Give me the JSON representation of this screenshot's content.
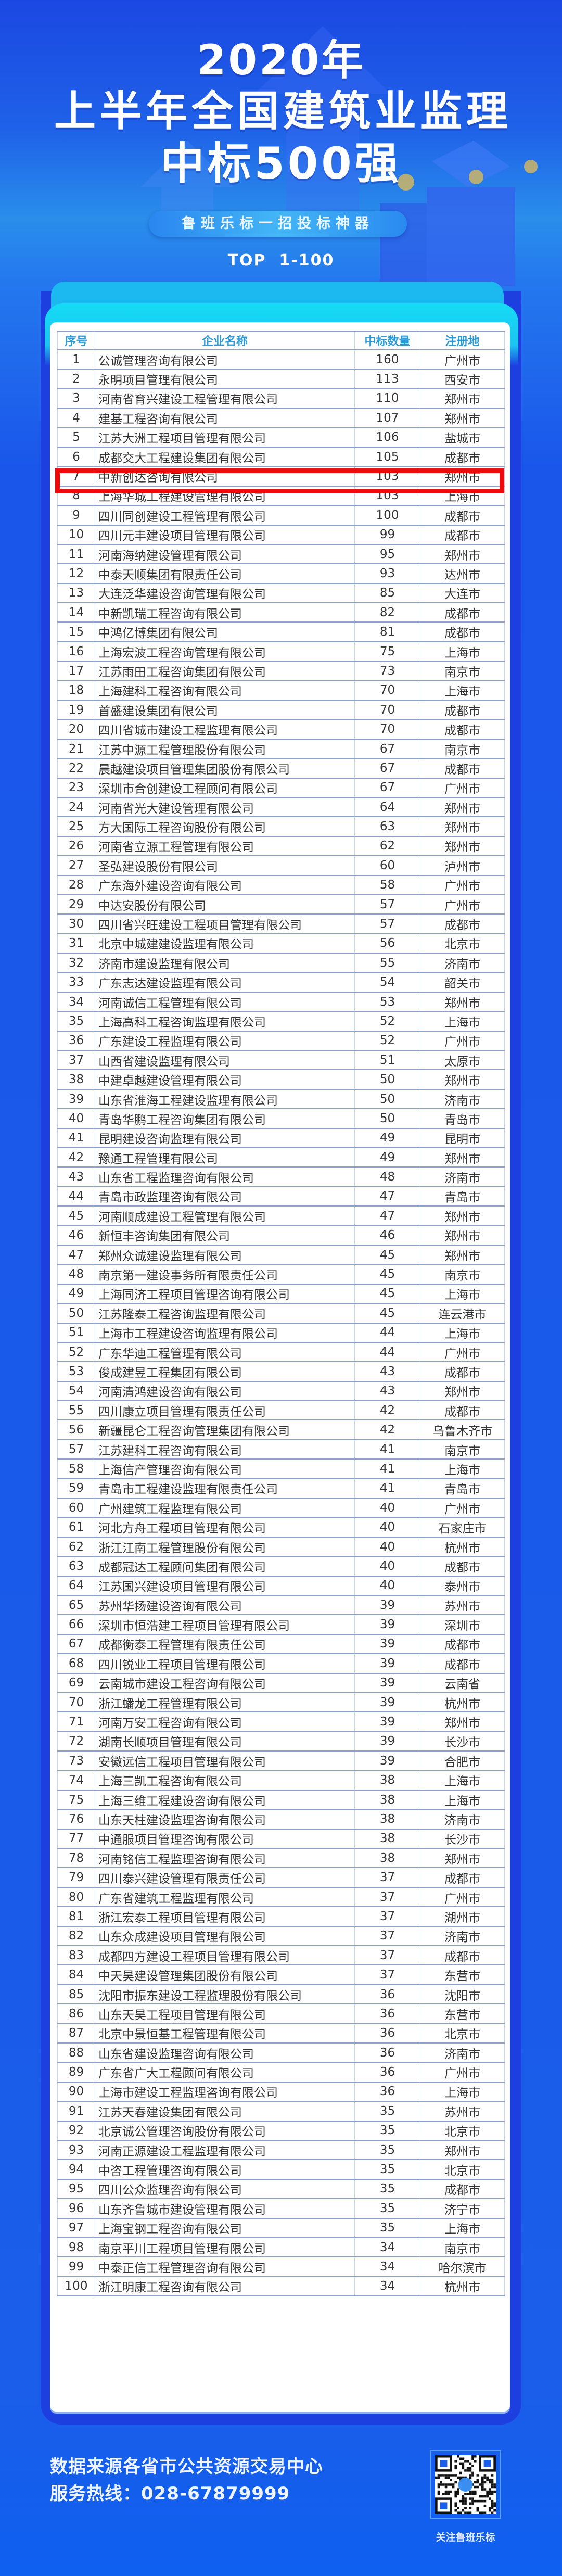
{
  "header": {
    "title_line1": "2020年",
    "title_line2": "上半年全国建筑业监理",
    "title_line3": "中标500强",
    "slogan": "鲁班乐标一招投标神器",
    "range": "TOP  1-100"
  },
  "colors": {
    "accent_cyan": "#15dcf4",
    "header_text": "#2a9ad8",
    "highlight": "#ee0a0a",
    "background_blue": "#1a5ee9"
  },
  "table": {
    "columns": [
      "序号",
      "企业名称",
      "中标数量",
      "注册地"
    ],
    "highlighted_rank": 7,
    "rows": [
      [
        "1",
        "公诚管理咨询有限公司",
        "160",
        "广州市"
      ],
      [
        "2",
        "永明项目管理有限公司",
        "113",
        "西安市"
      ],
      [
        "3",
        "河南省育兴建设工程管理有限公司",
        "110",
        "郑州市"
      ],
      [
        "4",
        "建基工程咨询有限公司",
        "107",
        "郑州市"
      ],
      [
        "5",
        "江苏大洲工程项目管理有限公司",
        "106",
        "盐城市"
      ],
      [
        "6",
        "成都交大工程建设集团有限公司",
        "105",
        "成都市"
      ],
      [
        "7",
        "中新创达咨询有限公司",
        "103",
        "郑州市"
      ],
      [
        "8",
        "上海华城工程建设管理有限公司",
        "103",
        "上海市"
      ],
      [
        "9",
        "四川同创建设工程管理有限公司",
        "100",
        "成都市"
      ],
      [
        "10",
        "四川元丰建设项目管理有限公司",
        "99",
        "成都市"
      ],
      [
        "11",
        "河南海纳建设管理有限公司",
        "95",
        "郑州市"
      ],
      [
        "12",
        "中泰天顺集团有限责任公司",
        "93",
        "达州市"
      ],
      [
        "13",
        "大连泛华建设咨询管理有限公司",
        "85",
        "大连市"
      ],
      [
        "14",
        "中新凯瑞工程咨询有限公司",
        "82",
        "成都市"
      ],
      [
        "15",
        "中鸿亿博集团有限公司",
        "81",
        "成都市"
      ],
      [
        "16",
        "上海宏波工程咨询管理有限公司",
        "75",
        "上海市"
      ],
      [
        "17",
        "江苏雨田工程咨询集团有限公司",
        "73",
        "南京市"
      ],
      [
        "18",
        "上海建科工程咨询有限公司",
        "70",
        "上海市"
      ],
      [
        "19",
        "首盛建设集团有限公司",
        "70",
        "成都市"
      ],
      [
        "20",
        "四川省城市建设工程监理有限公司",
        "70",
        "成都市"
      ],
      [
        "21",
        "江苏中源工程管理股份有限公司",
        "67",
        "南京市"
      ],
      [
        "22",
        "晨越建设项目管理集团股份有限公司",
        "67",
        "成都市"
      ],
      [
        "23",
        "深圳市合创建设工程顾问有限公司",
        "67",
        "广州市"
      ],
      [
        "24",
        "河南省光大建设管理有限公司",
        "64",
        "郑州市"
      ],
      [
        "25",
        "方大国际工程咨询股份有限公司",
        "63",
        "郑州市"
      ],
      [
        "26",
        "河南省立源工程管理有限公司",
        "62",
        "郑州市"
      ],
      [
        "27",
        "圣弘建设股份有限公司",
        "60",
        "泸州市"
      ],
      [
        "28",
        "广东海外建设咨询有限公司",
        "58",
        "广州市"
      ],
      [
        "29",
        "中达安股份有限公司",
        "57",
        "广州市"
      ],
      [
        "30",
        "四川省兴旺建设工程项目管理有限公司",
        "57",
        "成都市"
      ],
      [
        "31",
        "北京中城建建设监理有限公司",
        "56",
        "北京市"
      ],
      [
        "32",
        "济南市建设监理有限公司",
        "55",
        "济南市"
      ],
      [
        "33",
        "广东志达建设监理有限公司",
        "54",
        "韶关市"
      ],
      [
        "34",
        "河南诚信工程管理有限公司",
        "53",
        "郑州市"
      ],
      [
        "35",
        "上海高科工程咨询监理有限公司",
        "52",
        "上海市"
      ],
      [
        "36",
        "广东建设工程监理有限公司",
        "52",
        "广州市"
      ],
      [
        "37",
        "山西省建设监理有限公司",
        "51",
        "太原市"
      ],
      [
        "38",
        "中建卓越建设管理有限公司",
        "50",
        "郑州市"
      ],
      [
        "39",
        "山东省淮海工程建设监理有限公司",
        "50",
        "济南市"
      ],
      [
        "40",
        "青岛华鹏工程咨询集团有限公司",
        "50",
        "青岛市"
      ],
      [
        "41",
        "昆明建设咨询监理有限公司",
        "49",
        "昆明市"
      ],
      [
        "42",
        "豫通工程管理有限公司",
        "49",
        "郑州市"
      ],
      [
        "43",
        "山东省工程监理咨询有限公司",
        "48",
        "济南市"
      ],
      [
        "44",
        "青岛市政监理咨询有限公司",
        "47",
        "青岛市"
      ],
      [
        "45",
        "河南顺成建设工程管理有限公司",
        "47",
        "郑州市"
      ],
      [
        "46",
        "新恒丰咨询集团有限公司",
        "46",
        "郑州市"
      ],
      [
        "47",
        "郑州众诚建设监理有限公司",
        "45",
        "郑州市"
      ],
      [
        "48",
        "南京第一建设事务所有限责任公司",
        "45",
        "南京市"
      ],
      [
        "49",
        "上海同济工程项目管理咨询有限公司",
        "45",
        "上海市"
      ],
      [
        "50",
        "江苏隆泰工程咨询监理有限公司",
        "45",
        "连云港市"
      ],
      [
        "51",
        "上海市工程建设咨询监理有限公司",
        "44",
        "上海市"
      ],
      [
        "52",
        "广东华迪工程管理有限公司",
        "44",
        "广州市"
      ],
      [
        "53",
        "俊成建昱工程集团有限公司",
        "43",
        "成都市"
      ],
      [
        "54",
        "河南清鸿建设咨询有限公司",
        "43",
        "郑州市"
      ],
      [
        "55",
        "四川康立项目管理有限责任公司",
        "42",
        "成都市"
      ],
      [
        "56",
        "新疆昆仑工程咨询管理集团有限公司",
        "42",
        "乌鲁木齐市"
      ],
      [
        "57",
        "江苏建科工程咨询有限公司",
        "41",
        "南京市"
      ],
      [
        "58",
        "上海信产管理咨询有限公司",
        "41",
        "上海市"
      ],
      [
        "59",
        "青岛市工程建设监理有限责任公司",
        "41",
        "青岛市"
      ],
      [
        "60",
        "广州建筑工程监理有限公司",
        "40",
        "广州市"
      ],
      [
        "61",
        "河北方舟工程项目管理有限公司",
        "40",
        "石家庄市"
      ],
      [
        "62",
        "浙江江南工程管理股份有限公司",
        "40",
        "杭州市"
      ],
      [
        "63",
        "成都冠达工程顾问集团有限公司",
        "40",
        "成都市"
      ],
      [
        "64",
        "江苏国兴建设项目管理有限公司",
        "40",
        "泰州市"
      ],
      [
        "65",
        "苏州华扬建设咨询有限公司",
        "39",
        "苏州市"
      ],
      [
        "66",
        "深圳市恒浩建工程项目管理有限公司",
        "39",
        "深圳市"
      ],
      [
        "67",
        "成都衡泰工程管理有限责任公司",
        "39",
        "成都市"
      ],
      [
        "68",
        "四川锐业工程项目管理有限公司",
        "39",
        "成都市"
      ],
      [
        "69",
        "云南城市建设工程咨询有限公司",
        "39",
        "云南省"
      ],
      [
        "70",
        "浙江蟠龙工程管理有限公司",
        "39",
        "杭州市"
      ],
      [
        "71",
        "河南万安工程咨询有限公司",
        "39",
        "郑州市"
      ],
      [
        "72",
        "湖南长顺项目管理有限公司",
        "39",
        "长沙市"
      ],
      [
        "73",
        "安徽远信工程项目管理有限公司",
        "39",
        "合肥市"
      ],
      [
        "74",
        "上海三凯工程咨询有限公司",
        "38",
        "上海市"
      ],
      [
        "75",
        "上海三维工程建设咨询有限公司",
        "38",
        "上海市"
      ],
      [
        "76",
        "山东天柱建设监理咨询有限公司",
        "38",
        "济南市"
      ],
      [
        "77",
        "中通服项目管理咨询有限公司",
        "38",
        "长沙市"
      ],
      [
        "78",
        "河南铭信工程监理咨询有限公司",
        "38",
        "郑州市"
      ],
      [
        "79",
        "四川泰兴建设管理有限责任公司",
        "37",
        "成都市"
      ],
      [
        "80",
        "广东省建筑工程监理有限公司",
        "37",
        "广州市"
      ],
      [
        "81",
        "浙江宏泰工程项目管理有限公司",
        "37",
        "湖州市"
      ],
      [
        "82",
        "山东众成建设项目管理有限公司",
        "37",
        "济南市"
      ],
      [
        "83",
        "成都四方建设工程项目管理有限公司",
        "37",
        "成都市"
      ],
      [
        "84",
        "中天昊建设管理集团股份有限公司",
        "37",
        "东营市"
      ],
      [
        "85",
        "沈阳市振东建设工程监理股份有限公司",
        "36",
        "沈阳市"
      ],
      [
        "86",
        "山东天昊工程项目管理有限公司",
        "36",
        "东营市"
      ],
      [
        "87",
        "北京中景恒基工程管理有限公司",
        "36",
        "北京市"
      ],
      [
        "88",
        "山东省建设监理咨询有限公司",
        "36",
        "济南市"
      ],
      [
        "89",
        "广东省广大工程顾问有限公司",
        "36",
        "广州市"
      ],
      [
        "90",
        "上海市建设工程监理咨询有限公司",
        "36",
        "上海市"
      ],
      [
        "91",
        "江苏天春建设集团有限公司",
        "35",
        "苏州市"
      ],
      [
        "92",
        "北京诚公管理咨询股份有限公司",
        "35",
        "北京市"
      ],
      [
        "93",
        "河南正源建设工程监理有限公司",
        "35",
        "郑州市"
      ],
      [
        "94",
        "中咨工程管理咨询有限公司",
        "35",
        "北京市"
      ],
      [
        "95",
        "四川公众监理咨询有限公司",
        "35",
        "成都市"
      ],
      [
        "96",
        "山东齐鲁城市建设管理有限公司",
        "35",
        "济宁市"
      ],
      [
        "97",
        "上海宝钢工程咨询有限公司",
        "35",
        "上海市"
      ],
      [
        "98",
        "南京平川工程项目管理有限公司",
        "34",
        "南京市"
      ],
      [
        "99",
        "中泰正信工程管理咨询有限公司",
        "34",
        "哈尔滨市"
      ],
      [
        "100",
        "浙江明康工程咨询有限公司",
        "34",
        "杭州市"
      ]
    ]
  },
  "footer": {
    "source": "数据来源各省市公共资源交易中心",
    "hotline": "服务热线：028-67879999",
    "qr_caption": "关注鲁班乐标",
    "qr_icon": "qr-code-icon"
  }
}
